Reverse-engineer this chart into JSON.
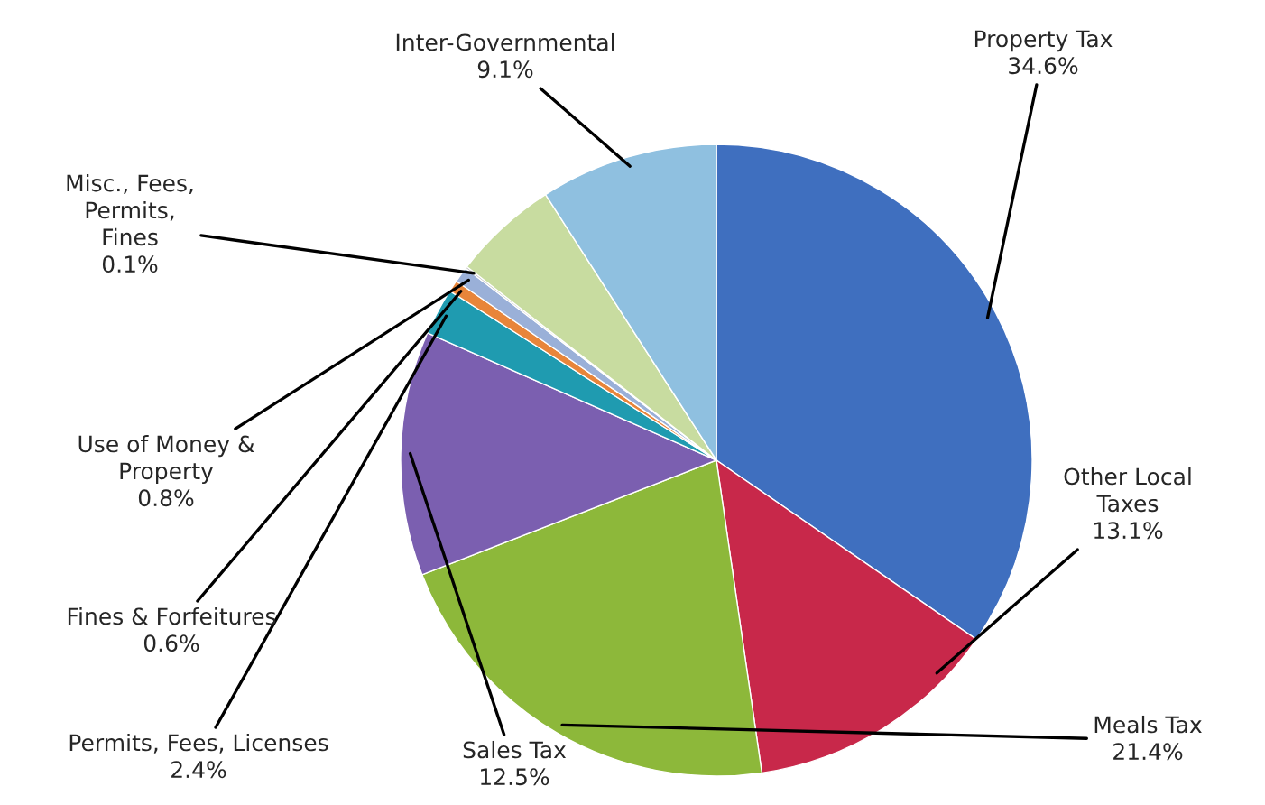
{
  "chart_data": {
    "type": "pie",
    "categories": [
      "Property Tax",
      "Other Local Taxes",
      "Meals Tax",
      "Sales Tax",
      "Permits, Fees, Licenses",
      "Fines & Forfeitures",
      "Use of Money & Property",
      "Misc., Fees, Permits, Fines",
      null,
      "Inter-Governmental"
    ],
    "values": [
      34.6,
      13.1,
      21.4,
      12.5,
      2.4,
      0.6,
      0.8,
      0.1,
      5.4,
      9.1
    ],
    "value_labels": [
      "34.6%",
      "13.1%",
      "21.4%",
      "12.5%",
      "2.4%",
      "0.6%",
      "0.8%",
      "0.1%",
      null,
      "9.1%"
    ],
    "colors": [
      "#3f6fbf",
      "#c8284a",
      "#8db83a",
      "#7b5fb0",
      "#1f9bb0",
      "#e8853a",
      "#9ab0d8",
      "#c0c0c0",
      "#c8dca0",
      "#8fc0e0"
    ]
  }
}
